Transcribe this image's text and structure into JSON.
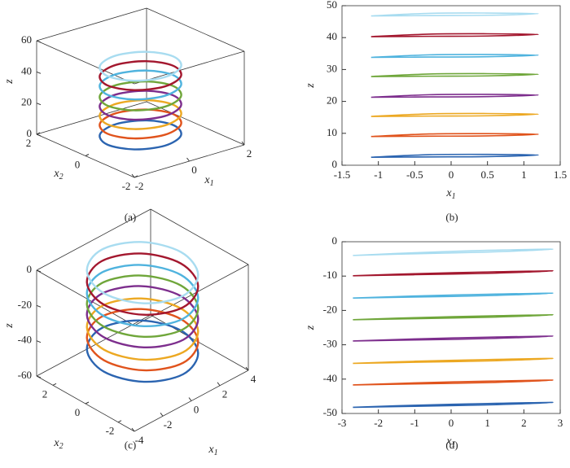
{
  "chart_data": [
    {
      "type": "line3d",
      "label": "(a)",
      "xlabel": [
        "x",
        "1"
      ],
      "ylabel": [
        "x",
        "2"
      ],
      "zlabel": "z",
      "xlim": [
        -2,
        2
      ],
      "ylim": [
        -2,
        2
      ],
      "zlim": [
        0,
        60
      ],
      "xticks": [
        -2,
        0,
        2
      ],
      "yticks": [
        -2,
        0,
        2
      ],
      "zticks": [
        0,
        20,
        40,
        60
      ],
      "series": [
        {
          "color": "#2b64b0",
          "z": 3,
          "x": [
            1.2,
            0.85,
            0,
            -0.85,
            -1.2,
            -0.85,
            0,
            0.85
          ],
          "y": [
            0,
            0.7,
            1,
            0.7,
            0,
            -0.7,
            -1,
            -0.7
          ]
        },
        {
          "color": "#e0531c",
          "z": 10,
          "x": [
            1.2,
            0.85,
            0,
            -0.85,
            -1.2,
            -0.85,
            0,
            0.85
          ],
          "y": [
            0,
            0.7,
            1,
            0.7,
            0,
            -0.7,
            -1,
            -0.7
          ]
        },
        {
          "color": "#eca822",
          "z": 16,
          "x": [
            1.2,
            0.85,
            0,
            -0.85,
            -1.2,
            -0.85,
            0,
            0.85
          ],
          "y": [
            0,
            0.7,
            1,
            0.7,
            0,
            -0.7,
            -1,
            -0.7
          ]
        },
        {
          "color": "#7d2e8d",
          "z": 22,
          "x": [
            1.2,
            0.85,
            0,
            -0.85,
            -1.2,
            -0.85,
            0,
            0.85
          ],
          "y": [
            0,
            0.7,
            1,
            0.7,
            0,
            -0.7,
            -1,
            -0.7
          ]
        },
        {
          "color": "#6fa63a",
          "z": 28,
          "x": [
            1.2,
            0.85,
            0,
            -0.85,
            -1.2,
            -0.85,
            0,
            0.85
          ],
          "y": [
            0,
            0.7,
            1,
            0.7,
            0,
            -0.7,
            -1,
            -0.7
          ]
        },
        {
          "color": "#4fb3de",
          "z": 35,
          "x": [
            1.2,
            0.85,
            0,
            -0.85,
            -1.2,
            -0.85,
            0,
            0.85
          ],
          "y": [
            0,
            0.7,
            1,
            0.7,
            0,
            -0.7,
            -1,
            -0.7
          ]
        },
        {
          "color": "#a3172e",
          "z": 41,
          "x": [
            1.2,
            0.85,
            0,
            -0.85,
            -1.2,
            -0.85,
            0,
            0.85
          ],
          "y": [
            0,
            0.7,
            1,
            0.7,
            0,
            -0.7,
            -1,
            -0.7
          ]
        },
        {
          "color": "#a8dcf0",
          "z": 47,
          "x": [
            1.2,
            0.85,
            0,
            -0.85,
            -1.2,
            -0.85,
            0,
            0.85
          ],
          "y": [
            0,
            0.7,
            1,
            0.7,
            0,
            -0.7,
            -1,
            -0.7
          ]
        }
      ]
    },
    {
      "type": "line",
      "label": "(b)",
      "xlabel": [
        "x",
        "1"
      ],
      "ylabel": "z",
      "xlim": [
        -1.5,
        1.5
      ],
      "ylim": [
        0,
        50
      ],
      "xticks": [
        -1.5,
        -1,
        -0.5,
        0,
        0.5,
        1,
        1.5
      ],
      "yticks": [
        0,
        10,
        20,
        30,
        40,
        50
      ],
      "series": [
        {
          "color": "#2b64b0",
          "x": [
            -1.1,
            -0.3,
            0.5,
            1.2,
            0.5,
            -0.3,
            -1.1
          ],
          "values": [
            2.5,
            2.6,
            2.7,
            3.2,
            3.4,
            3.3,
            2.5
          ]
        },
        {
          "color": "#e0531c",
          "x": [
            -1.1,
            -0.3,
            0.5,
            1.2,
            0.5,
            -0.3,
            -1.1
          ],
          "values": [
            9,
            9.1,
            9.2,
            9.7,
            9.9,
            9.8,
            9
          ]
        },
        {
          "color": "#eca822",
          "x": [
            -1.1,
            -0.3,
            0.5,
            1.2,
            0.5,
            -0.3,
            -1.1
          ],
          "values": [
            15.3,
            15.4,
            15.5,
            16,
            16.2,
            16.1,
            15.3
          ]
        },
        {
          "color": "#7d2e8d",
          "x": [
            -1.1,
            -0.3,
            0.5,
            1.2,
            0.5,
            -0.3,
            -1.1
          ],
          "values": [
            21.3,
            21.4,
            21.5,
            22,
            22.2,
            22.1,
            21.3
          ]
        },
        {
          "color": "#6fa63a",
          "x": [
            -1.1,
            -0.3,
            0.5,
            1.2,
            0.5,
            -0.3,
            -1.1
          ],
          "values": [
            27.8,
            27.9,
            28,
            28.5,
            28.7,
            28.6,
            27.8
          ]
        },
        {
          "color": "#4fb3de",
          "x": [
            -1.1,
            -0.3,
            0.5,
            1.2,
            0.5,
            -0.3,
            -1.1
          ],
          "values": [
            33.8,
            33.9,
            34,
            34.5,
            34.7,
            34.6,
            33.8
          ]
        },
        {
          "color": "#a3172e",
          "x": [
            -1.1,
            -0.3,
            0.5,
            1.2,
            0.5,
            -0.3,
            -1.1
          ],
          "values": [
            40.3,
            40.4,
            40.5,
            41,
            41.2,
            41.1,
            40.3
          ]
        },
        {
          "color": "#a8dcf0",
          "x": [
            -1.1,
            -0.3,
            0.5,
            1.2,
            0.5,
            -0.3,
            -1.1
          ],
          "values": [
            46.8,
            46.9,
            47,
            47.5,
            47.7,
            47.6,
            46.8
          ]
        }
      ]
    },
    {
      "type": "line3d",
      "label": "(c)",
      "xlabel": [
        "x",
        "1"
      ],
      "ylabel": [
        "x",
        "2"
      ],
      "zlabel": "z",
      "xlim": [
        -4,
        4
      ],
      "ylim": [
        -3,
        3
      ],
      "zlim": [
        -60,
        0
      ],
      "xticks": [
        -4,
        -2,
        0,
        2,
        4
      ],
      "yticks": [
        -2,
        0,
        2
      ],
      "zticks": [
        -60,
        -40,
        -20,
        0
      ],
      "series": [
        {
          "color": "#2b64b0",
          "z": -47.5,
          "x": [
            2.7,
            1.9,
            0,
            -1.9,
            -2.7,
            -1.9,
            0,
            1.9
          ],
          "y": [
            0,
            1.75,
            2.5,
            1.75,
            0,
            -1.75,
            -2.5,
            -1.75
          ]
        },
        {
          "color": "#e0531c",
          "z": -41,
          "x": [
            2.7,
            1.9,
            0,
            -1.9,
            -2.7,
            -1.9,
            0,
            1.9
          ],
          "y": [
            0,
            1.75,
            2.5,
            1.75,
            0,
            -1.75,
            -2.5,
            -1.75
          ]
        },
        {
          "color": "#eca822",
          "z": -35,
          "x": [
            2.7,
            1.9,
            0,
            -1.9,
            -2.7,
            -1.9,
            0,
            1.9
          ],
          "y": [
            0,
            1.75,
            2.5,
            1.75,
            0,
            -1.75,
            -2.5,
            -1.75
          ]
        },
        {
          "color": "#7d2e8d",
          "z": -28,
          "x": [
            2.7,
            1.9,
            0,
            -1.9,
            -2.7,
            -1.9,
            0,
            1.9
          ],
          "y": [
            0,
            1.75,
            2.5,
            1.75,
            0,
            -1.75,
            -2.5,
            -1.75
          ]
        },
        {
          "color": "#6fa63a",
          "z": -22,
          "x": [
            2.7,
            1.9,
            0,
            -1.9,
            -2.7,
            -1.9,
            0,
            1.9
          ],
          "y": [
            0,
            1.75,
            2.5,
            1.75,
            0,
            -1.75,
            -2.5,
            -1.75
          ]
        },
        {
          "color": "#4fb3de",
          "z": -16,
          "x": [
            2.7,
            1.9,
            0,
            -1.9,
            -2.7,
            -1.9,
            0,
            1.9
          ],
          "y": [
            0,
            1.75,
            2.5,
            1.75,
            0,
            -1.75,
            -2.5,
            -1.75
          ]
        },
        {
          "color": "#a3172e",
          "z": -9.5,
          "x": [
            2.7,
            1.9,
            0,
            -1.9,
            -2.7,
            -1.9,
            0,
            1.9
          ],
          "y": [
            0,
            1.75,
            2.5,
            1.75,
            0,
            -1.75,
            -2.5,
            -1.75
          ]
        },
        {
          "color": "#a8dcf0",
          "z": -3,
          "x": [
            2.7,
            1.9,
            0,
            -1.9,
            -2.7,
            -1.9,
            0,
            1.9
          ],
          "y": [
            0,
            1.75,
            2.5,
            1.75,
            0,
            -1.75,
            -2.5,
            -1.75
          ]
        }
      ]
    },
    {
      "type": "line",
      "label": "(d)",
      "xlabel": [
        "x",
        "1"
      ],
      "ylabel": "z",
      "xlim": [
        -3,
        3
      ],
      "ylim": [
        -50,
        0
      ],
      "xticks": [
        -3,
        -2,
        -1,
        0,
        1,
        2,
        3
      ],
      "yticks": [
        -50,
        -40,
        -30,
        -20,
        -10,
        0
      ],
      "series": [
        {
          "color": "#2b64b0",
          "x": [
            -2.7,
            -1,
            1,
            2.8,
            1,
            -1,
            -2.7
          ],
          "values": [
            -48.2,
            -47.9,
            -47.5,
            -46.8,
            -47.1,
            -47.6,
            -48.2
          ]
        },
        {
          "color": "#e0531c",
          "x": [
            -2.7,
            -1,
            1,
            2.8,
            1,
            -1,
            -2.7
          ],
          "values": [
            -41.7,
            -41.4,
            -41,
            -40.3,
            -40.6,
            -41.1,
            -41.7
          ]
        },
        {
          "color": "#eca822",
          "x": [
            -2.7,
            -1,
            1,
            2.8,
            1,
            -1,
            -2.7
          ],
          "values": [
            -35.4,
            -35.1,
            -34.7,
            -34,
            -34.3,
            -34.8,
            -35.4
          ]
        },
        {
          "color": "#7d2e8d",
          "x": [
            -2.7,
            -1,
            1,
            2.8,
            1,
            -1,
            -2.7
          ],
          "values": [
            -28.9,
            -28.6,
            -28.2,
            -27.5,
            -27.8,
            -28.3,
            -28.9
          ]
        },
        {
          "color": "#6fa63a",
          "x": [
            -2.7,
            -1,
            1,
            2.8,
            1,
            -1,
            -2.7
          ],
          "values": [
            -22.7,
            -22.4,
            -22,
            -21.3,
            -21.6,
            -22.1,
            -22.7
          ]
        },
        {
          "color": "#4fb3de",
          "x": [
            -2.7,
            -1,
            1,
            2.8,
            1,
            -1,
            -2.7
          ],
          "values": [
            -16.4,
            -16.1,
            -15.7,
            -15,
            -15.3,
            -15.8,
            -16.4
          ]
        },
        {
          "color": "#a3172e",
          "x": [
            -2.7,
            -1,
            1,
            2.8,
            1,
            -1,
            -2.7
          ],
          "values": [
            -9.9,
            -9.6,
            -9.2,
            -8.5,
            -8.8,
            -9.3,
            -9.9
          ]
        },
        {
          "color": "#a8dcf0",
          "x": [
            -2.7,
            -1,
            1,
            2.8,
            1,
            -1,
            -2.7
          ],
          "values": [
            -4,
            -3.5,
            -3,
            -2.2,
            -2.5,
            -3.2,
            -4
          ]
        }
      ]
    }
  ]
}
